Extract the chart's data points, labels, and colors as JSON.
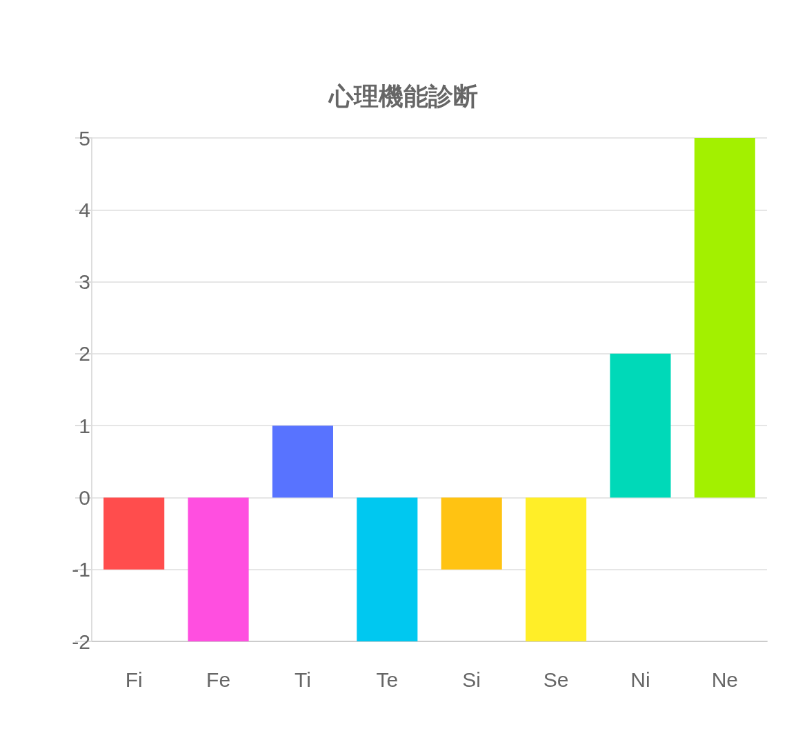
{
  "chart_data": {
    "type": "bar",
    "title": "心理機能診断",
    "categories": [
      "Fi",
      "Fe",
      "Ti",
      "Te",
      "Si",
      "Se",
      "Ni",
      "Ne"
    ],
    "values": [
      -1,
      -2,
      1,
      -2,
      -1,
      -2,
      2,
      5
    ],
    "colors": [
      "#ff4d4d",
      "#ff4fe0",
      "#5873ff",
      "#00c8f0",
      "#ffc312",
      "#ffee28",
      "#00d9b8",
      "#a3f000"
    ],
    "ylim": [
      -2,
      5
    ],
    "yticks": [
      -2,
      -1,
      0,
      1,
      2,
      3,
      4,
      5
    ],
    "grid": "y"
  }
}
